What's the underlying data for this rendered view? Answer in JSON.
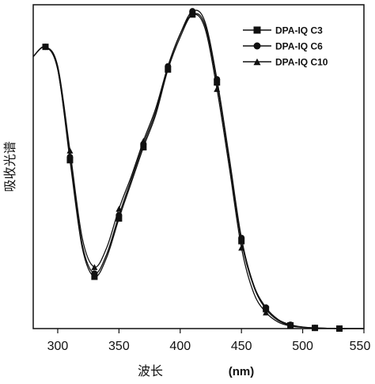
{
  "chart_data": {
    "type": "line",
    "xlabel": "波长",
    "xunit": "(nm)",
    "ylabel": "吸收光谱",
    "xlim": [
      280,
      550
    ],
    "ylim": [
      0,
      1
    ],
    "xticks": [
      300,
      350,
      400,
      450,
      500,
      550
    ],
    "yticks_shown": false,
    "legend_position": "top-right",
    "series": [
      {
        "name": "DPA-IQ C3",
        "marker": "square",
        "x": [
          280,
          290,
          300,
          310,
          320,
          330,
          340,
          350,
          360,
          370,
          380,
          390,
          400,
          410,
          420,
          430,
          440,
          450,
          460,
          470,
          480,
          490,
          500,
          510,
          520,
          530,
          540,
          550
        ],
        "y": [
          0.84,
          0.87,
          0.8,
          0.52,
          0.25,
          0.16,
          0.22,
          0.34,
          0.45,
          0.56,
          0.66,
          0.8,
          0.9,
          0.97,
          0.94,
          0.76,
          0.52,
          0.27,
          0.13,
          0.06,
          0.025,
          0.01,
          0.004,
          0.002,
          0.001,
          0.0,
          0.0,
          0.0
        ]
      },
      {
        "name": "DPA-IQ C6",
        "marker": "circle",
        "x": [
          280,
          290,
          300,
          310,
          320,
          330,
          340,
          350,
          360,
          370,
          380,
          390,
          400,
          410,
          420,
          430,
          440,
          450,
          460,
          470,
          480,
          490,
          500,
          510,
          520,
          530,
          540,
          550
        ],
        "y": [
          0.84,
          0.87,
          0.8,
          0.53,
          0.26,
          0.17,
          0.23,
          0.35,
          0.46,
          0.57,
          0.67,
          0.81,
          0.91,
          0.98,
          0.95,
          0.77,
          0.53,
          0.28,
          0.135,
          0.065,
          0.028,
          0.012,
          0.005,
          0.002,
          0.001,
          0.0,
          0.0,
          0.0
        ]
      },
      {
        "name": "DPA-IQ C10",
        "marker": "triangle",
        "x": [
          280,
          290,
          300,
          310,
          320,
          330,
          340,
          350,
          360,
          370,
          380,
          390,
          400,
          410,
          420,
          430,
          440,
          450,
          460,
          470,
          480,
          490,
          500,
          510,
          520,
          530,
          540,
          550
        ],
        "y": [
          0.84,
          0.87,
          0.81,
          0.55,
          0.28,
          0.19,
          0.25,
          0.37,
          0.47,
          0.58,
          0.68,
          0.81,
          0.91,
          0.97,
          0.93,
          0.74,
          0.5,
          0.25,
          0.11,
          0.05,
          0.02,
          0.008,
          0.004,
          0.002,
          0.001,
          0.0,
          0.0,
          0.0
        ]
      }
    ],
    "markers_at_x": [
      290,
      310,
      330,
      350,
      370,
      390,
      410,
      430,
      450,
      470,
      490,
      510,
      530
    ]
  }
}
